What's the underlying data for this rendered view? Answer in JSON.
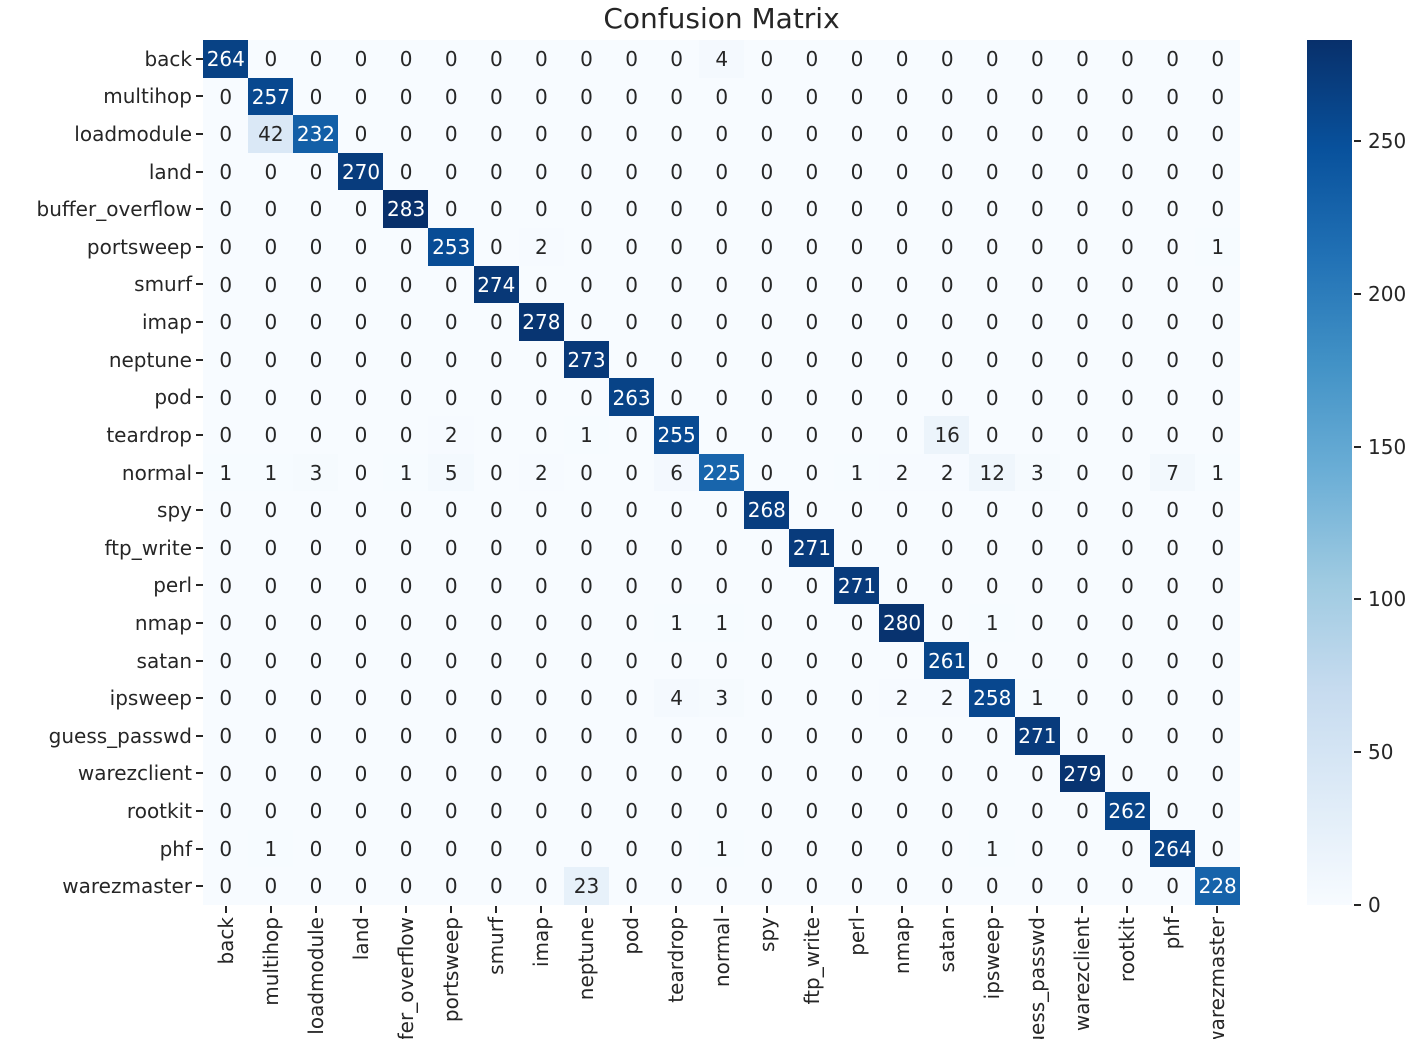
{
  "chart_data": {
    "type": "heatmap",
    "title": "Confusion Matrix",
    "colormap": "Blues",
    "grid": false,
    "legend_position": "right-colorbar",
    "classes": [
      "back",
      "multihop",
      "loadmodule",
      "land",
      "buffer_overflow",
      "portsweep",
      "smurf",
      "imap",
      "neptune",
      "pod",
      "teardrop",
      "normal",
      "spy",
      "ftp_write",
      "perl",
      "nmap",
      "satan",
      "ipsweep",
      "guess_passwd",
      "warezclient",
      "rootkit",
      "phf",
      "warezmaster"
    ],
    "matrix": [
      [
        264,
        0,
        0,
        0,
        0,
        0,
        0,
        0,
        0,
        0,
        0,
        4,
        0,
        0,
        0,
        0,
        0,
        0,
        0,
        0,
        0,
        0,
        0
      ],
      [
        0,
        257,
        0,
        0,
        0,
        0,
        0,
        0,
        0,
        0,
        0,
        0,
        0,
        0,
        0,
        0,
        0,
        0,
        0,
        0,
        0,
        0,
        0
      ],
      [
        0,
        42,
        232,
        0,
        0,
        0,
        0,
        0,
        0,
        0,
        0,
        0,
        0,
        0,
        0,
        0,
        0,
        0,
        0,
        0,
        0,
        0,
        0
      ],
      [
        0,
        0,
        0,
        270,
        0,
        0,
        0,
        0,
        0,
        0,
        0,
        0,
        0,
        0,
        0,
        0,
        0,
        0,
        0,
        0,
        0,
        0,
        0
      ],
      [
        0,
        0,
        0,
        0,
        283,
        0,
        0,
        0,
        0,
        0,
        0,
        0,
        0,
        0,
        0,
        0,
        0,
        0,
        0,
        0,
        0,
        0,
        0
      ],
      [
        0,
        0,
        0,
        0,
        0,
        253,
        0,
        2,
        0,
        0,
        0,
        0,
        0,
        0,
        0,
        0,
        0,
        0,
        0,
        0,
        0,
        0,
        1
      ],
      [
        0,
        0,
        0,
        0,
        0,
        0,
        274,
        0,
        0,
        0,
        0,
        0,
        0,
        0,
        0,
        0,
        0,
        0,
        0,
        0,
        0,
        0,
        0
      ],
      [
        0,
        0,
        0,
        0,
        0,
        0,
        0,
        278,
        0,
        0,
        0,
        0,
        0,
        0,
        0,
        0,
        0,
        0,
        0,
        0,
        0,
        0,
        0
      ],
      [
        0,
        0,
        0,
        0,
        0,
        0,
        0,
        0,
        273,
        0,
        0,
        0,
        0,
        0,
        0,
        0,
        0,
        0,
        0,
        0,
        0,
        0,
        0
      ],
      [
        0,
        0,
        0,
        0,
        0,
        0,
        0,
        0,
        0,
        263,
        0,
        0,
        0,
        0,
        0,
        0,
        0,
        0,
        0,
        0,
        0,
        0,
        0
      ],
      [
        0,
        0,
        0,
        0,
        0,
        2,
        0,
        0,
        1,
        0,
        255,
        0,
        0,
        0,
        0,
        0,
        16,
        0,
        0,
        0,
        0,
        0,
        0
      ],
      [
        1,
        1,
        3,
        0,
        1,
        5,
        0,
        2,
        0,
        0,
        6,
        225,
        0,
        0,
        1,
        2,
        2,
        12,
        3,
        0,
        0,
        7,
        1
      ],
      [
        0,
        0,
        0,
        0,
        0,
        0,
        0,
        0,
        0,
        0,
        0,
        0,
        268,
        0,
        0,
        0,
        0,
        0,
        0,
        0,
        0,
        0,
        0
      ],
      [
        0,
        0,
        0,
        0,
        0,
        0,
        0,
        0,
        0,
        0,
        0,
        0,
        0,
        271,
        0,
        0,
        0,
        0,
        0,
        0,
        0,
        0,
        0
      ],
      [
        0,
        0,
        0,
        0,
        0,
        0,
        0,
        0,
        0,
        0,
        0,
        0,
        0,
        0,
        271,
        0,
        0,
        0,
        0,
        0,
        0,
        0,
        0
      ],
      [
        0,
        0,
        0,
        0,
        0,
        0,
        0,
        0,
        0,
        0,
        1,
        1,
        0,
        0,
        0,
        280,
        0,
        1,
        0,
        0,
        0,
        0,
        0
      ],
      [
        0,
        0,
        0,
        0,
        0,
        0,
        0,
        0,
        0,
        0,
        0,
        0,
        0,
        0,
        0,
        0,
        261,
        0,
        0,
        0,
        0,
        0,
        0
      ],
      [
        0,
        0,
        0,
        0,
        0,
        0,
        0,
        0,
        0,
        0,
        4,
        3,
        0,
        0,
        0,
        2,
        2,
        258,
        1,
        0,
        0,
        0,
        0
      ],
      [
        0,
        0,
        0,
        0,
        0,
        0,
        0,
        0,
        0,
        0,
        0,
        0,
        0,
        0,
        0,
        0,
        0,
        0,
        271,
        0,
        0,
        0,
        0
      ],
      [
        0,
        0,
        0,
        0,
        0,
        0,
        0,
        0,
        0,
        0,
        0,
        0,
        0,
        0,
        0,
        0,
        0,
        0,
        0,
        279,
        0,
        0,
        0
      ],
      [
        0,
        0,
        0,
        0,
        0,
        0,
        0,
        0,
        0,
        0,
        0,
        0,
        0,
        0,
        0,
        0,
        0,
        0,
        0,
        0,
        262,
        0,
        0
      ],
      [
        0,
        1,
        0,
        0,
        0,
        0,
        0,
        0,
        0,
        0,
        0,
        1,
        0,
        0,
        0,
        0,
        0,
        1,
        0,
        0,
        0,
        264,
        0
      ],
      [
        0,
        0,
        0,
        0,
        0,
        0,
        0,
        0,
        23,
        0,
        0,
        0,
        0,
        0,
        0,
        0,
        0,
        0,
        0,
        0,
        0,
        0,
        228
      ]
    ],
    "vmin": 0,
    "vmax": 283,
    "colorbar_ticks": [
      0,
      50,
      100,
      150,
      200,
      250
    ],
    "colormap_stops": [
      "#f7fbff",
      "#deebf7",
      "#c6dbef",
      "#9ecae1",
      "#6baed6",
      "#4292c6",
      "#2171b5",
      "#08519c",
      "#08306b"
    ],
    "annotation_text_dark": "#262626",
    "annotation_text_light": "#ffffff"
  }
}
